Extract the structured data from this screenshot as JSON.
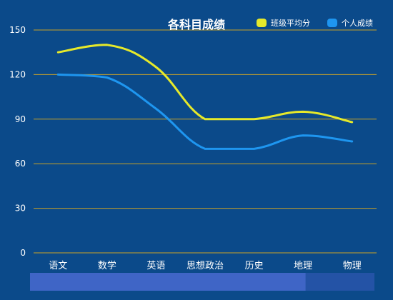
{
  "chart_data": {
    "type": "line",
    "title": "各科目成绩",
    "categories": [
      "语文",
      "数学",
      "英语",
      "思想政治",
      "历史",
      "地理",
      "物理"
    ],
    "series": [
      {
        "name": "班级平均分",
        "values": [
          135,
          140,
          125,
          90,
          90,
          95,
          88
        ],
        "color": "#e6e92a"
      },
      {
        "name": "个人成绩",
        "values": [
          120,
          118,
          97,
          70,
          70,
          79,
          75
        ],
        "color": "#1e96f0"
      }
    ],
    "ylim": [
      0,
      150
    ],
    "yticks": [
      0,
      30,
      60,
      90,
      120,
      150
    ],
    "smooth": true,
    "grid": true,
    "legend_position": "top-right",
    "gridline_color": "#c9a227",
    "background_color": "#0b4a8a",
    "datazoom": {
      "start": 0,
      "end": 80
    }
  }
}
